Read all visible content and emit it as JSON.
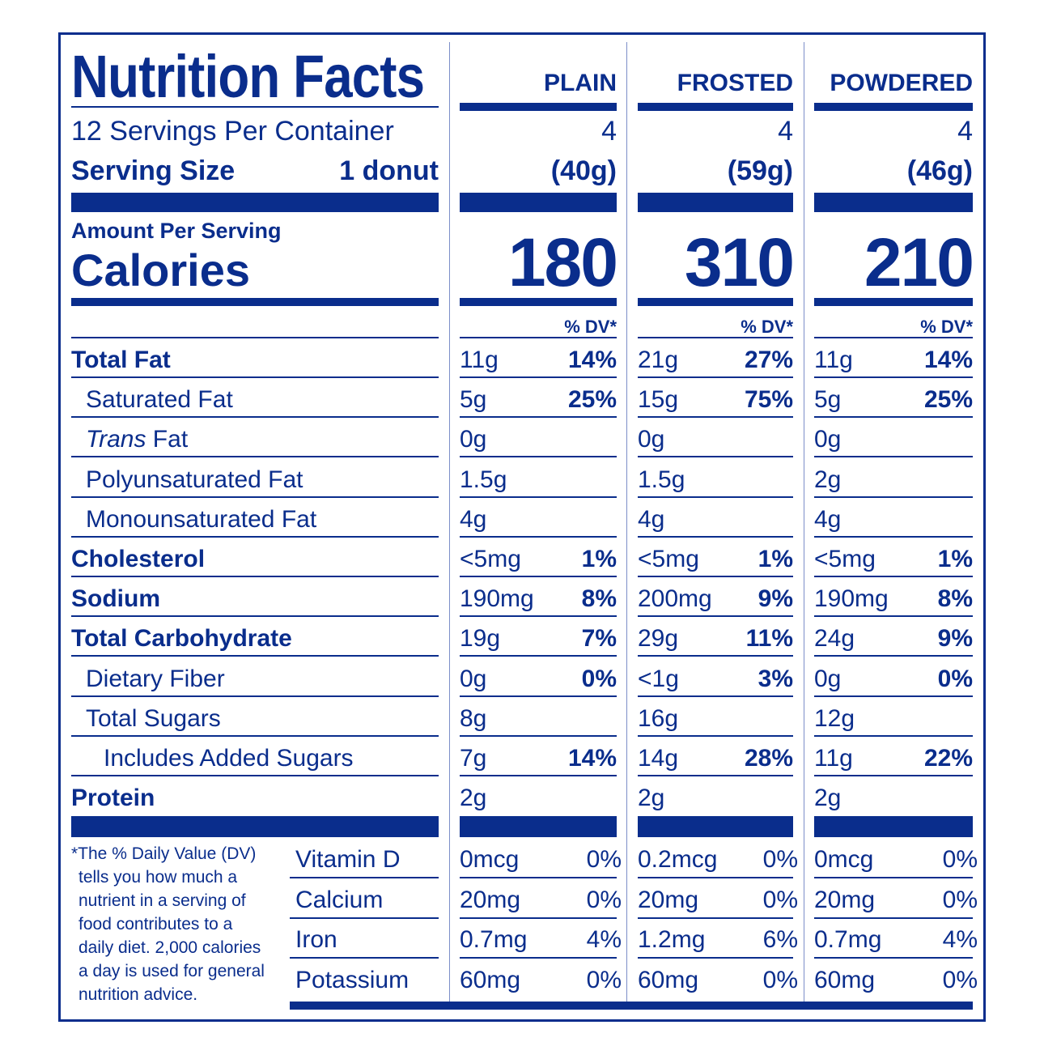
{
  "header": {
    "title": "Nutrition Facts",
    "servings_per_container": "12 Servings Per Container",
    "serving_size_label": "Serving Size",
    "serving_size_value": "1 donut",
    "amount_per_serving": "Amount Per Serving",
    "calories_label": "Calories",
    "dv_label": "% DV*"
  },
  "columns": [
    {
      "name": "PLAIN",
      "servings": "4",
      "weight": "(40g)",
      "calories": "180"
    },
    {
      "name": "FROSTED",
      "servings": "4",
      "weight": "(59g)",
      "calories": "310"
    },
    {
      "name": "POWDERED",
      "servings": "4",
      "weight": "(46g)",
      "calories": "210"
    }
  ],
  "nutrients": [
    {
      "label": "Total Fat",
      "bold": true,
      "values": [
        [
          "11g",
          "14%"
        ],
        [
          "21g",
          "27%"
        ],
        [
          "11g",
          "14%"
        ]
      ]
    },
    {
      "label": "Saturated Fat",
      "values": [
        [
          "5g",
          "25%"
        ],
        [
          "15g",
          "75%"
        ],
        [
          "5g",
          "25%"
        ]
      ]
    },
    {
      "label_italic": "Trans",
      "label": " Fat",
      "values": [
        [
          "0g",
          ""
        ],
        [
          "0g",
          ""
        ],
        [
          "0g",
          ""
        ]
      ]
    },
    {
      "label": "Polyunsaturated Fat",
      "values": [
        [
          "1.5g",
          ""
        ],
        [
          "1.5g",
          ""
        ],
        [
          "2g",
          ""
        ]
      ]
    },
    {
      "label": "Monounsaturated Fat",
      "values": [
        [
          "4g",
          ""
        ],
        [
          "4g",
          ""
        ],
        [
          "4g",
          ""
        ]
      ]
    },
    {
      "label": "Cholesterol",
      "bold": true,
      "values": [
        [
          "<5mg",
          "1%"
        ],
        [
          "<5mg",
          "1%"
        ],
        [
          "<5mg",
          "1%"
        ]
      ]
    },
    {
      "label": "Sodium",
      "bold": true,
      "values": [
        [
          "190mg",
          "8%"
        ],
        [
          "200mg",
          "9%"
        ],
        [
          "190mg",
          "8%"
        ]
      ]
    },
    {
      "label": "Total Carbohydrate",
      "bold": true,
      "values": [
        [
          "19g",
          "7%"
        ],
        [
          "29g",
          "11%"
        ],
        [
          "24g",
          "9%"
        ]
      ]
    },
    {
      "label": "Dietary Fiber",
      "values": [
        [
          "0g",
          "0%"
        ],
        [
          "<1g",
          "3%"
        ],
        [
          "0g",
          "0%"
        ]
      ]
    },
    {
      "label": "Total Sugars",
      "values": [
        [
          "8g",
          ""
        ],
        [
          "16g",
          ""
        ],
        [
          "12g",
          ""
        ]
      ]
    },
    {
      "label": "Includes Added Sugars",
      "values": [
        [
          "7g",
          "14%"
        ],
        [
          "14g",
          "28%"
        ],
        [
          "11g",
          "22%"
        ]
      ]
    },
    {
      "label": "Protein",
      "bold": true,
      "values": [
        [
          "2g",
          ""
        ],
        [
          "2g",
          ""
        ],
        [
          "2g",
          ""
        ]
      ]
    }
  ],
  "vitamins": [
    {
      "label": "Vitamin D",
      "values": [
        [
          "0mcg",
          "0%"
        ],
        [
          "0.2mcg",
          "0%"
        ],
        [
          "0mcg",
          "0%"
        ]
      ]
    },
    {
      "label": "Calcium",
      "values": [
        [
          "20mg",
          "0%"
        ],
        [
          "20mg",
          "0%"
        ],
        [
          "20mg",
          "0%"
        ]
      ]
    },
    {
      "label": "Iron",
      "values": [
        [
          "0.7mg",
          "4%"
        ],
        [
          "1.2mg",
          "6%"
        ],
        [
          "0.7mg",
          "4%"
        ]
      ]
    },
    {
      "label": "Potassium",
      "values": [
        [
          "60mg",
          "0%"
        ],
        [
          "60mg",
          "0%"
        ],
        [
          "60mg",
          "0%"
        ]
      ]
    }
  ],
  "footnote": [
    "*The % Daily Value (DV)",
    "tells you how much a",
    "nutrient in a serving of",
    "food contributes to a",
    "daily diet. 2,000 calories",
    "a day is used for general",
    "nutrition advice."
  ],
  "colors": {
    "ink": "#0a2d8c",
    "background": "#ffffff"
  }
}
